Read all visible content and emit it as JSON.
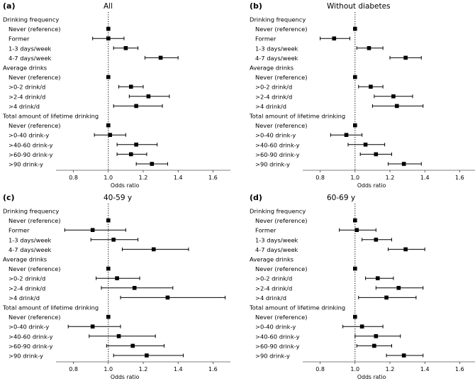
{
  "chart_data": [
    {
      "type": "forest",
      "panel_label": "(a)",
      "title": "All",
      "xlabel": "Odds ratio",
      "xlim": [
        0.7,
        1.7
      ],
      "xticks": [
        "0.8",
        "1.0",
        "1.2",
        "1.4",
        "1.6"
      ],
      "reference_line": 1.0,
      "sections": [
        {
          "header": "Drinking frequency",
          "rows": [
            {
              "label": "Never (reference)",
              "or": 1.0,
              "lo": 1.0,
              "hi": 1.0
            },
            {
              "label": "Former",
              "or": 1.0,
              "lo": 0.91,
              "hi": 1.09
            },
            {
              "label": "1-3 days/week",
              "or": 1.1,
              "lo": 1.03,
              "hi": 1.17
            },
            {
              "label": "4-7 days/week",
              "or": 1.3,
              "lo": 1.21,
              "hi": 1.4
            }
          ]
        },
        {
          "header": "Average drinks",
          "rows": [
            {
              "label": "Never (reference)",
              "or": 1.0,
              "lo": 1.0,
              "hi": 1.0
            },
            {
              "label": ">0-2 drink/d",
              "or": 1.13,
              "lo": 1.06,
              "hi": 1.2
            },
            {
              "label": ">2-4 drink/d",
              "or": 1.23,
              "lo": 1.12,
              "hi": 1.35
            },
            {
              "label": ">4 drink/d",
              "or": 1.16,
              "lo": 1.03,
              "hi": 1.31
            }
          ]
        },
        {
          "header": "Total amount of lifetime drinking",
          "rows": [
            {
              "label": "Never (reference)",
              "or": 1.0,
              "lo": 1.0,
              "hi": 1.0
            },
            {
              "label": ">0-40 drink-y",
              "or": 1.01,
              "lo": 0.92,
              "hi": 1.1
            },
            {
              "label": ">40-60 drink-y",
              "or": 1.16,
              "lo": 1.05,
              "hi": 1.28
            },
            {
              "label": ">60-90 drink-y",
              "or": 1.13,
              "lo": 1.05,
              "hi": 1.22
            },
            {
              "label": ">90 drink-y",
              "or": 1.25,
              "lo": 1.16,
              "hi": 1.34
            }
          ]
        }
      ]
    },
    {
      "type": "forest",
      "panel_label": "(b)",
      "title": "Without diabetes",
      "xlabel": "Odds ratio",
      "xlim": [
        0.7,
        1.7
      ],
      "xticks": [
        "0.8",
        "1.0",
        "1.2",
        "1.4",
        "1.6"
      ],
      "reference_line": 1.0,
      "sections": [
        {
          "header": "Drinking frequency",
          "rows": [
            {
              "label": "Never (reference)",
              "or": 1.0,
              "lo": 1.0,
              "hi": 1.0
            },
            {
              "label": "Former",
              "or": 0.88,
              "lo": 0.8,
              "hi": 0.97
            },
            {
              "label": "1-3 days/week",
              "or": 1.08,
              "lo": 1.01,
              "hi": 1.16
            },
            {
              "label": "4-7 days/week",
              "or": 1.29,
              "lo": 1.2,
              "hi": 1.38
            }
          ]
        },
        {
          "header": "Average drinks",
          "rows": [
            {
              "label": "Never (reference)",
              "or": 1.0,
              "lo": 1.0,
              "hi": 1.0
            },
            {
              "label": ">0-2 drink/d",
              "or": 1.09,
              "lo": 1.02,
              "hi": 1.16
            },
            {
              "label": ">2-4 drink/d",
              "or": 1.22,
              "lo": 1.11,
              "hi": 1.33
            },
            {
              "label": ">4 drink/d",
              "or": 1.24,
              "lo": 1.1,
              "hi": 1.39
            }
          ]
        },
        {
          "header": "Total amount of lifetime drinking",
          "rows": [
            {
              "label": "Never (reference)",
              "or": 1.0,
              "lo": 1.0,
              "hi": 1.0
            },
            {
              "label": ">0-40 drink-y",
              "or": 0.95,
              "lo": 0.86,
              "hi": 1.04
            },
            {
              "label": ">40-60 drink-y",
              "or": 1.06,
              "lo": 0.96,
              "hi": 1.17
            },
            {
              "label": ">60-90 drink-y",
              "or": 1.12,
              "lo": 1.03,
              "hi": 1.21
            },
            {
              "label": ">90 drink-y",
              "or": 1.28,
              "lo": 1.19,
              "hi": 1.38
            }
          ]
        }
      ]
    },
    {
      "type": "forest",
      "panel_label": "(c)",
      "title": "40-59 y",
      "xlabel": "Odds ratio",
      "xlim": [
        0.7,
        1.7
      ],
      "xticks": [
        "0.8",
        "1.0",
        "1.2",
        "1.4",
        "1.6"
      ],
      "reference_line": 1.0,
      "sections": [
        {
          "header": "Drinking frequency",
          "rows": [
            {
              "label": "Never (reference)",
              "or": 1.0,
              "lo": 1.0,
              "hi": 1.0
            },
            {
              "label": "Former",
              "or": 0.91,
              "lo": 0.75,
              "hi": 1.1
            },
            {
              "label": "1-3 days/week",
              "or": 1.03,
              "lo": 0.9,
              "hi": 1.17
            },
            {
              "label": "4-7 days/week",
              "or": 1.26,
              "lo": 1.08,
              "hi": 1.46
            }
          ]
        },
        {
          "header": "Average drinks",
          "rows": [
            {
              "label": "Never (reference)",
              "or": 1.0,
              "lo": 1.0,
              "hi": 1.0
            },
            {
              "label": ">0-2 drink/d",
              "or": 1.05,
              "lo": 0.93,
              "hi": 1.18
            },
            {
              "label": ">2-4 drink/d",
              "or": 1.15,
              "lo": 0.96,
              "hi": 1.37
            },
            {
              "label": ">4 drink/d",
              "or": 1.34,
              "lo": 1.07,
              "hi": 1.67
            }
          ]
        },
        {
          "header": "Total amount of lifetime drinking",
          "rows": [
            {
              "label": "Never (reference)",
              "or": 1.0,
              "lo": 1.0,
              "hi": 1.0
            },
            {
              "label": ">0-40 drink-y",
              "or": 0.91,
              "lo": 0.77,
              "hi": 1.07
            },
            {
              "label": ">40-60 drink-y",
              "or": 1.06,
              "lo": 0.89,
              "hi": 1.27
            },
            {
              "label": ">60-90 drink-y",
              "or": 1.14,
              "lo": 0.99,
              "hi": 1.32
            },
            {
              "label": ">90 drink-y",
              "or": 1.22,
              "lo": 1.03,
              "hi": 1.43
            }
          ]
        }
      ]
    },
    {
      "type": "forest",
      "panel_label": "(d)",
      "title": "60-69 y",
      "xlabel": "Odds ratio",
      "xlim": [
        0.7,
        1.7
      ],
      "xticks": [
        "0.8",
        "1.0",
        "1.2",
        "1.4",
        "1.6"
      ],
      "reference_line": 1.0,
      "sections": [
        {
          "header": "Drinking frequency",
          "rows": [
            {
              "label": "Never (reference)",
              "or": 1.0,
              "lo": 1.0,
              "hi": 1.0
            },
            {
              "label": "Former",
              "or": 1.01,
              "lo": 0.91,
              "hi": 1.12
            },
            {
              "label": "1-3 days/week",
              "or": 1.12,
              "lo": 1.04,
              "hi": 1.21
            },
            {
              "label": "4-7 days/week",
              "or": 1.29,
              "lo": 1.19,
              "hi": 1.4
            }
          ]
        },
        {
          "header": "Average drinks",
          "rows": [
            {
              "label": "Never (reference)",
              "or": 1.0,
              "lo": 1.0,
              "hi": 1.0
            },
            {
              "label": ">0-2 drink/d",
              "or": 1.13,
              "lo": 1.06,
              "hi": 1.22
            },
            {
              "label": ">2-4 drink/d",
              "or": 1.25,
              "lo": 1.12,
              "hi": 1.39
            },
            {
              "label": ">4 drink/d",
              "or": 1.18,
              "lo": 1.02,
              "hi": 1.35
            }
          ]
        },
        {
          "header": "Total amount of lifetime drinking",
          "rows": [
            {
              "label": "Never (reference)",
              "or": 1.0,
              "lo": 1.0,
              "hi": 1.0
            },
            {
              "label": ">0-40 drink-y",
              "or": 1.04,
              "lo": 0.93,
              "hi": 1.16
            },
            {
              "label": ">40-60 drink-y",
              "or": 1.12,
              "lo": 1.0,
              "hi": 1.26
            },
            {
              "label": ">60-90 drink-y",
              "or": 1.11,
              "lo": 1.01,
              "hi": 1.21
            },
            {
              "label": ">90 drink-y",
              "or": 1.28,
              "lo": 1.18,
              "hi": 1.39
            }
          ]
        }
      ]
    }
  ]
}
